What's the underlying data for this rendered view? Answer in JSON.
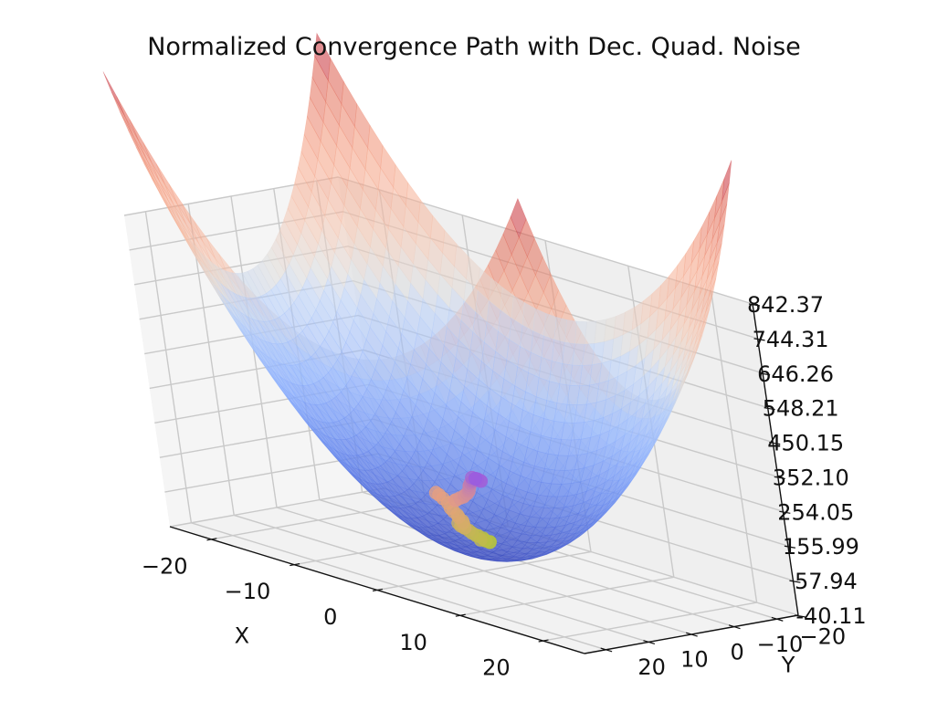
{
  "chart_data": {
    "type": "surface3d",
    "title": "Normalized Convergence Path with Dec. Quad. Noise",
    "xlabel": "X",
    "ylabel": "Y",
    "zlabel": "",
    "xlim": [
      -25,
      25
    ],
    "ylim": [
      -25,
      25
    ],
    "zlim": [
      -40.11,
      842.37
    ],
    "xticks": [
      -20,
      -10,
      0,
      10,
      20
    ],
    "xtick_labels": [
      "−20",
      "−10",
      "0",
      "10",
      "20"
    ],
    "yticks": [
      -20,
      -10,
      0,
      10,
      20
    ],
    "ytick_labels": [
      "−20",
      "−10",
      "0",
      "10",
      "20"
    ],
    "zticks": [
      -40.11,
      57.94,
      155.99,
      254.05,
      352.1,
      450.15,
      548.21,
      646.26,
      744.31,
      842.37
    ],
    "ztick_labels": [
      "-40.11",
      "57.94",
      "155.99",
      "254.05",
      "352.10",
      "450.15",
      "548.21",
      "646.26",
      "744.31",
      "842.37"
    ],
    "grid": true,
    "surface": {
      "function": "x^2 + y^2",
      "colormap": "coolwarm",
      "alpha": 0.55,
      "min": 0,
      "max": 1250
    },
    "path": {
      "colors": [
        "#b0c43a",
        "#e8a080",
        "#9a5ce0"
      ],
      "points": [
        {
          "x": -1.2,
          "y": -4.5,
          "z": 24
        },
        {
          "x": -1.6,
          "y": -4.1,
          "z": 27
        },
        {
          "x": -0.9,
          "y": -3.9,
          "z": 26
        },
        {
          "x": -1.5,
          "y": -3.6,
          "z": 34
        },
        {
          "x": -1.1,
          "y": -3.4,
          "z": 30
        },
        {
          "x": -1.9,
          "y": -3.3,
          "z": 38
        },
        {
          "x": -2.0,
          "y": -3.0,
          "z": 40
        },
        {
          "x": -1.4,
          "y": -2.8,
          "z": 32
        },
        {
          "x": -2.3,
          "y": -2.7,
          "z": 45
        },
        {
          "x": -2.6,
          "y": -2.6,
          "z": 50
        },
        {
          "x": -3.0,
          "y": -2.4,
          "z": 55
        },
        {
          "x": -3.3,
          "y": -2.4,
          "z": 62
        },
        {
          "x": -3.6,
          "y": -2.2,
          "z": 65
        },
        {
          "x": -3.2,
          "y": -2.0,
          "z": 60
        },
        {
          "x": -2.6,
          "y": -1.8,
          "z": 60
        },
        {
          "x": -2.5,
          "y": -1.4,
          "z": 74
        },
        {
          "x": -2.4,
          "y": -1.1,
          "z": 82
        },
        {
          "x": -2.6,
          "y": -0.7,
          "z": 92
        },
        {
          "x": -2.5,
          "y": -0.3,
          "z": 100
        },
        {
          "x": -2.7,
          "y": 0.1,
          "z": 110
        },
        {
          "x": -2.9,
          "y": 0.3,
          "z": 118
        },
        {
          "x": -3.2,
          "y": 0.2,
          "z": 130
        },
        {
          "x": -3.6,
          "y": 0.4,
          "z": 140
        },
        {
          "x": -4.0,
          "y": 0.5,
          "z": 148
        },
        {
          "x": -4.3,
          "y": 0.6,
          "z": 152
        },
        {
          "x": -2.2,
          "y": 0.3,
          "z": 145
        },
        {
          "x": -1.8,
          "y": 0.7,
          "z": 150
        },
        {
          "x": -1.2,
          "y": 0.9,
          "z": 160
        },
        {
          "x": -0.6,
          "y": 1.1,
          "z": 168
        },
        {
          "x": -0.2,
          "y": 1.5,
          "z": 176
        },
        {
          "x": 0.3,
          "y": 1.8,
          "z": 185
        },
        {
          "x": 0.7,
          "y": 2.1,
          "z": 195
        },
        {
          "x": 1.0,
          "y": 2.5,
          "z": 203
        },
        {
          "x": 1.3,
          "y": 2.9,
          "z": 212
        },
        {
          "x": 1.5,
          "y": 3.2,
          "z": 220
        },
        {
          "x": 1.8,
          "y": 3.4,
          "z": 228
        },
        {
          "x": 2.0,
          "y": 3.7,
          "z": 233
        },
        {
          "x": 2.3,
          "y": 3.9,
          "z": 238
        },
        {
          "x": 2.5,
          "y": 4.1,
          "z": 242
        },
        {
          "x": 2.8,
          "y": 4.3,
          "z": 246
        },
        {
          "x": 3.1,
          "y": 4.4,
          "z": 250
        },
        {
          "x": 3.4,
          "y": 4.6,
          "z": 252
        },
        {
          "x": 3.7,
          "y": 4.6,
          "z": 253
        },
        {
          "x": 3.2,
          "y": 4.8,
          "z": 255
        },
        {
          "x": 2.9,
          "y": 4.9,
          "z": 256
        },
        {
          "x": 3.6,
          "y": 5.0,
          "z": 257
        },
        {
          "x": 4.0,
          "y": 4.9,
          "z": 254
        },
        {
          "x": 3.5,
          "y": 5.2,
          "z": 258
        }
      ]
    }
  }
}
